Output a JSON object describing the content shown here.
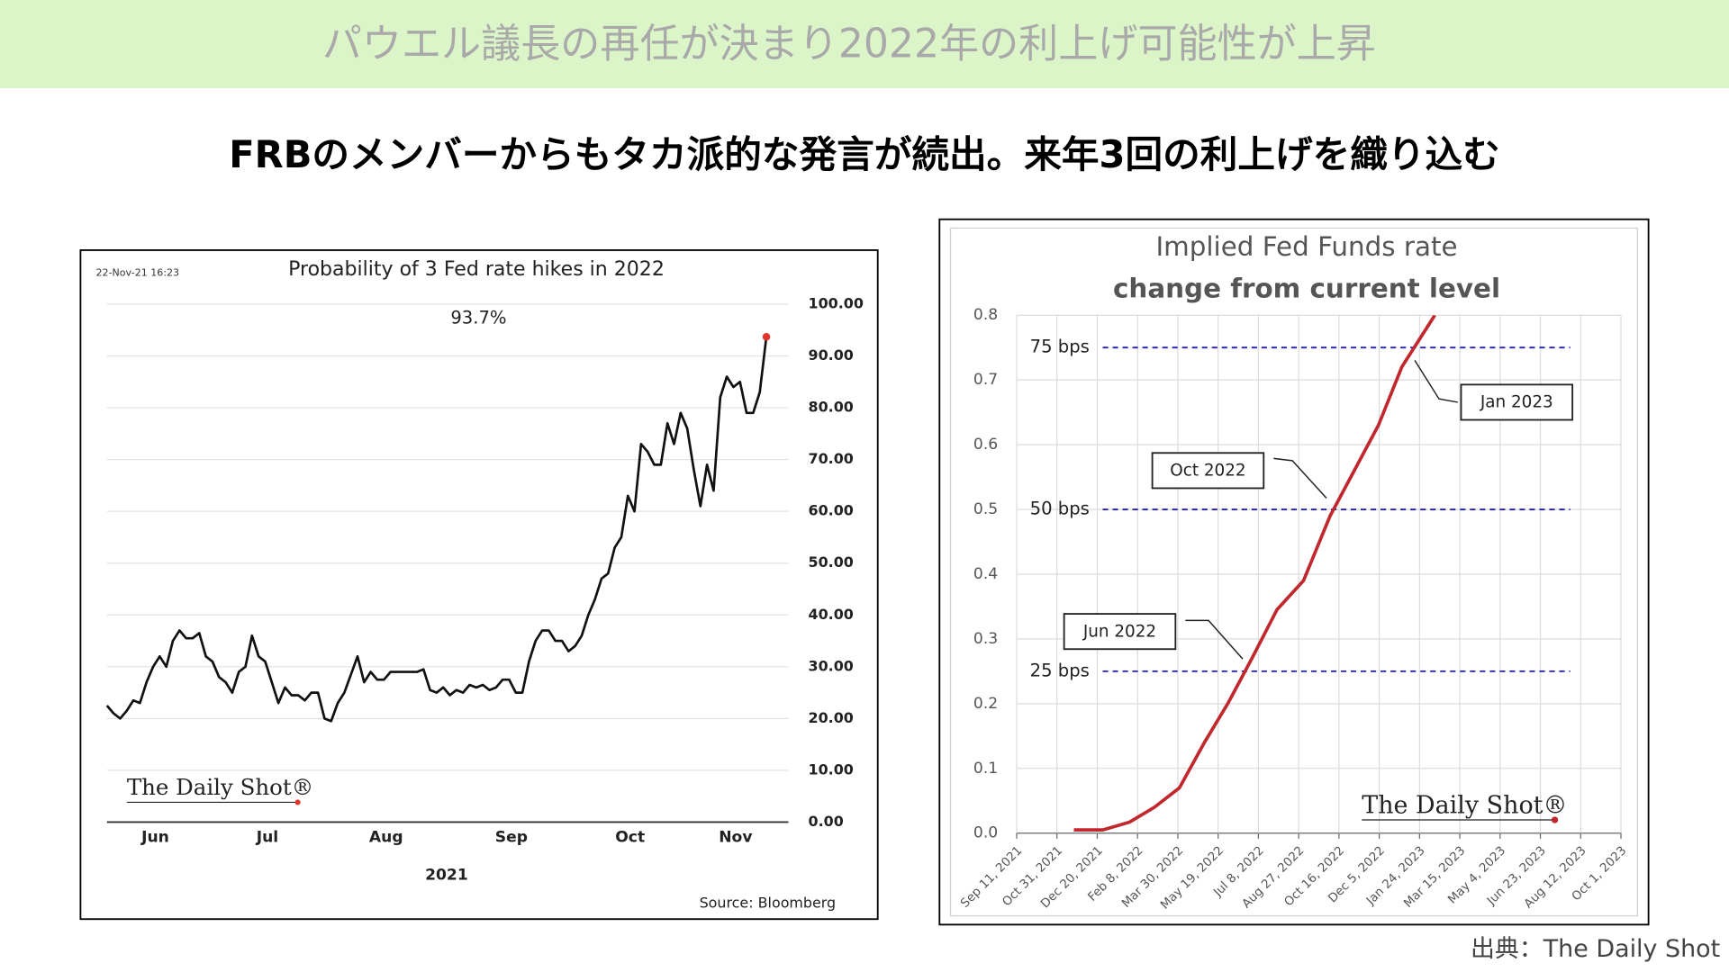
{
  "header": {
    "title": "パウエル議長の再任が決まり2022年の利上げ可能性が上昇",
    "subtitle": "FRBのメンバーからもタカ派的な発言が続出。来年3回の利上げを織り込む"
  },
  "source": "出典：The Daily Shot",
  "chart_data": [
    {
      "type": "line",
      "title": "Probability of 3 Fed rate hikes in 2022",
      "timestamp": "22-Nov-21 16:23",
      "annotation": "93.7%",
      "xlabel": "2021",
      "source": "Source: Bloomberg",
      "logo": "The Daily Shot®",
      "categories": [
        null,
        null,
        null,
        null,
        null,
        null,
        null,
        "Jun",
        null,
        null,
        null,
        null,
        null,
        null,
        null,
        null,
        null,
        null,
        null,
        null,
        null,
        null,
        null,
        null,
        "Jul",
        null,
        null,
        null,
        null,
        null,
        null,
        null,
        null,
        null,
        null,
        null,
        null,
        null,
        null,
        null,
        null,
        null,
        "Aug",
        null,
        null,
        null,
        null,
        null,
        null,
        null,
        null,
        null,
        null,
        null,
        null,
        null,
        null,
        null,
        null,
        null,
        null,
        "Sep",
        null,
        null,
        null,
        null,
        null,
        null,
        null,
        null,
        null,
        null,
        null,
        null,
        null,
        null,
        null,
        null,
        null,
        "Oct",
        null,
        null,
        null,
        null,
        null,
        null,
        null,
        null,
        null,
        null,
        null,
        null,
        null,
        null,
        null,
        "Nov",
        null,
        null,
        null,
        null,
        null
      ],
      "values": [
        22.5,
        21,
        20,
        21.5,
        23.5,
        23,
        27,
        30,
        32,
        30,
        35,
        37,
        35.5,
        35.5,
        36.5,
        32,
        31,
        28,
        27,
        25,
        29,
        30,
        36,
        32,
        31,
        27,
        23,
        26,
        24.5,
        24.5,
        23.5,
        25,
        25,
        20,
        19.5,
        23,
        25,
        28.5,
        32,
        27,
        29,
        27.5,
        27.5,
        29,
        29,
        29,
        29,
        29,
        29.5,
        25.5,
        25,
        26,
        24.5,
        25.5,
        25,
        26.5,
        26,
        26.5,
        25.5,
        26,
        27.5,
        27.5,
        25,
        25,
        31,
        35,
        37,
        37,
        35,
        35,
        33,
        34,
        36,
        40,
        43,
        47,
        48,
        53,
        55,
        63,
        60,
        73,
        71.5,
        69,
        69,
        77,
        73,
        79,
        76,
        68,
        61,
        69,
        64,
        82,
        86,
        84,
        85,
        79,
        79,
        83,
        93.7
      ],
      "color": "#111111",
      "end_marker_color": "#e0362c",
      "ylim": [
        0,
        100
      ],
      "yticks": [
        {
          "value": 0,
          "label": "0.00"
        },
        {
          "value": 10,
          "label": "10.00"
        },
        {
          "value": 20,
          "label": "20.00"
        },
        {
          "value": 30,
          "label": "30.00"
        },
        {
          "value": 40,
          "label": "40.00"
        },
        {
          "value": 50,
          "label": "50.00"
        },
        {
          "value": 60,
          "label": "60.00"
        },
        {
          "value": 70,
          "label": "70.00"
        },
        {
          "value": 80,
          "label": "80.00"
        },
        {
          "value": 90,
          "label": "90.00"
        },
        {
          "value": 100,
          "label": "100.00"
        }
      ],
      "grid": true,
      "y_axis_side": "right"
    },
    {
      "type": "line",
      "title": "Implied Fed Funds rate",
      "subtitle": "change from current level",
      "logo": "The Daily Shot®",
      "x": [
        "2021-11-21",
        "2021-12-27",
        "2022-01-29",
        "2022-03-01",
        "2022-04-01",
        "2022-05-02",
        "2022-05-31",
        "2022-06-30",
        "2022-07-31",
        "2022-09-02",
        "2022-10-05",
        "2022-11-04",
        "2022-12-04",
        "2023-01-02",
        "2023-02-12"
      ],
      "values": [
        0.005,
        0.005,
        0.017,
        0.04,
        0.07,
        0.14,
        0.2,
        0.27,
        0.345,
        0.39,
        0.49,
        0.56,
        0.63,
        0.72,
        0.8
      ],
      "color": "#c0282d",
      "xlim": [
        "2021-09-11",
        "2023-10-01"
      ],
      "xticks": [
        {
          "value": "2021-09-11",
          "label": "Sep 11, 2021"
        },
        {
          "value": "2021-10-31",
          "label": "Oct 31, 2021"
        },
        {
          "value": "2021-12-20",
          "label": "Dec 20, 2021"
        },
        {
          "value": "2022-02-08",
          "label": "Feb 8, 2022"
        },
        {
          "value": "2022-03-30",
          "label": "Mar 30, 2022"
        },
        {
          "value": "2022-05-19",
          "label": "May 19, 2022"
        },
        {
          "value": "2022-07-08",
          "label": "Jul 8, 2022"
        },
        {
          "value": "2022-08-27",
          "label": "Aug 27, 2022"
        },
        {
          "value": "2022-10-16",
          "label": "Oct 16, 2022"
        },
        {
          "value": "2022-12-05",
          "label": "Dec 5, 2022"
        },
        {
          "value": "2023-01-24",
          "label": "Jan 24, 2023"
        },
        {
          "value": "2023-03-15",
          "label": "Mar 15, 2023"
        },
        {
          "value": "2023-05-04",
          "label": "May 4, 2023"
        },
        {
          "value": "2023-06-23",
          "label": "Jun 23, 2023"
        },
        {
          "value": "2023-08-12",
          "label": "Aug 12, 2023"
        },
        {
          "value": "2023-10-01",
          "label": "Oct 1, 2023"
        }
      ],
      "ylim": [
        0,
        0.8
      ],
      "yticks": [
        {
          "value": 0,
          "label": "0.0"
        },
        0.1,
        0.2,
        0.3,
        0.4,
        0.5,
        0.6,
        0.7,
        0.8
      ],
      "grid": true,
      "reference_lines": [
        {
          "value": 0.25,
          "label": "25 bps"
        },
        {
          "value": 0.5,
          "label": "50 bps"
        },
        {
          "value": 0.75,
          "label": "75 bps"
        }
      ],
      "reference_color": "#1f1fd0",
      "callouts": [
        "Jun 2022",
        "Oct 2022",
        "Jan 2023"
      ]
    }
  ]
}
